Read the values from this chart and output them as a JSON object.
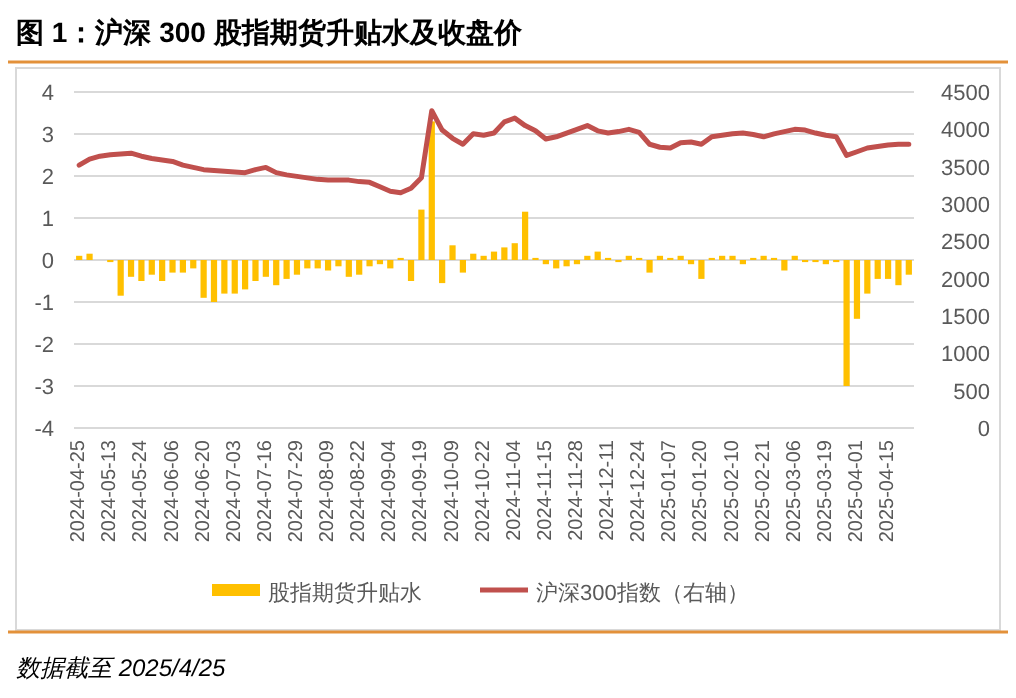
{
  "chart_data": {
    "type": "bar",
    "title": "图 1：沪深 300 股指期货升贴水及收盘价",
    "categories": [
      "2024-04-25",
      null,
      null,
      "2024-05-13",
      null,
      null,
      "2024-05-24",
      null,
      null,
      "2024-06-06",
      null,
      null,
      "2024-06-20",
      null,
      null,
      "2024-07-03",
      null,
      null,
      "2024-07-16",
      null,
      null,
      "2024-07-29",
      null,
      null,
      "2024-08-09",
      null,
      null,
      "2024-08-22",
      null,
      null,
      "2024-09-04",
      null,
      null,
      "2024-09-19",
      null,
      null,
      "2024-10-09",
      null,
      null,
      "2024-10-22",
      null,
      null,
      "2024-11-04",
      null,
      null,
      "2024-11-15",
      null,
      null,
      "2024-11-28",
      null,
      null,
      "2024-12-11",
      null,
      null,
      "2024-12-24",
      null,
      null,
      "2025-01-07",
      null,
      null,
      "2025-01-20",
      null,
      null,
      "2025-02-10",
      null,
      null,
      "2025-02-21",
      null,
      null,
      "2025-03-06",
      null,
      null,
      "2025-03-19",
      null,
      null,
      "2025-04-01",
      null,
      null,
      "2025-04-15",
      null,
      null
    ],
    "series": [
      {
        "name": "股指期货升贴水",
        "color": "#ffc000",
        "values": [
          0.1,
          0.15,
          0,
          -0.05,
          -0.85,
          -0.4,
          -0.5,
          -0.35,
          -0.5,
          -0.3,
          -0.3,
          -0.2,
          -0.9,
          -1.0,
          -0.8,
          -0.8,
          -0.7,
          -0.5,
          -0.4,
          -0.6,
          -0.45,
          -0.35,
          -0.2,
          -0.2,
          -0.25,
          -0.15,
          -0.4,
          -0.35,
          -0.15,
          -0.1,
          -0.2,
          0.05,
          -0.5,
          1.2,
          3.3,
          -0.55,
          0.35,
          -0.3,
          0.15,
          0.1,
          0.2,
          0.3,
          0.4,
          1.15,
          0.05,
          -0.1,
          -0.2,
          -0.15,
          -0.1,
          0.1,
          0.2,
          0.05,
          -0.05,
          0.1,
          0.05,
          -0.3,
          0.1,
          0.05,
          0.1,
          -0.1,
          -0.45,
          0.05,
          0.1,
          0.1,
          -0.1,
          0.05,
          0.1,
          0.05,
          -0.25,
          0.1,
          -0.05,
          -0.05,
          -0.1,
          -0.05,
          -3.0,
          -1.4,
          -0.8,
          -0.45,
          -0.45,
          -0.6,
          -0.35
        ]
      },
      {
        "name": "沪深300指数（右轴）",
        "type": "line",
        "axis": "y2",
        "color": "#c0504d",
        "values": [
          3520,
          3600,
          3640,
          3660,
          3670,
          3680,
          3640,
          3610,
          3590,
          3570,
          3520,
          3490,
          3460,
          3450,
          3440,
          3430,
          3420,
          3460,
          3490,
          3420,
          3390,
          3370,
          3350,
          3330,
          3320,
          3320,
          3320,
          3300,
          3290,
          3230,
          3170,
          3150,
          3210,
          3350,
          4250,
          3990,
          3880,
          3800,
          3940,
          3920,
          3950,
          4100,
          4150,
          4050,
          3980,
          3870,
          3900,
          3950,
          4000,
          4050,
          3980,
          3950,
          3970,
          4000,
          3960,
          3800,
          3760,
          3750,
          3820,
          3830,
          3800,
          3900,
          3920,
          3940,
          3950,
          3930,
          3900,
          3940,
          3970,
          4000,
          3990,
          3950,
          3920,
          3900,
          3650,
          3700,
          3750,
          3770,
          3790,
          3800,
          3800
        ]
      }
    ],
    "ylim": [
      -4,
      4
    ],
    "yticks": [
      -4,
      -3,
      -2,
      -1,
      0,
      1,
      2,
      3,
      4
    ],
    "y2lim": [
      0,
      4500
    ],
    "y2ticks": [
      0,
      500,
      1000,
      1500,
      2000,
      2500,
      3000,
      3500,
      4000,
      4500
    ],
    "grid": "y",
    "legend": "bottom",
    "annotations": [
      "数据截至 2025/4/25"
    ]
  }
}
